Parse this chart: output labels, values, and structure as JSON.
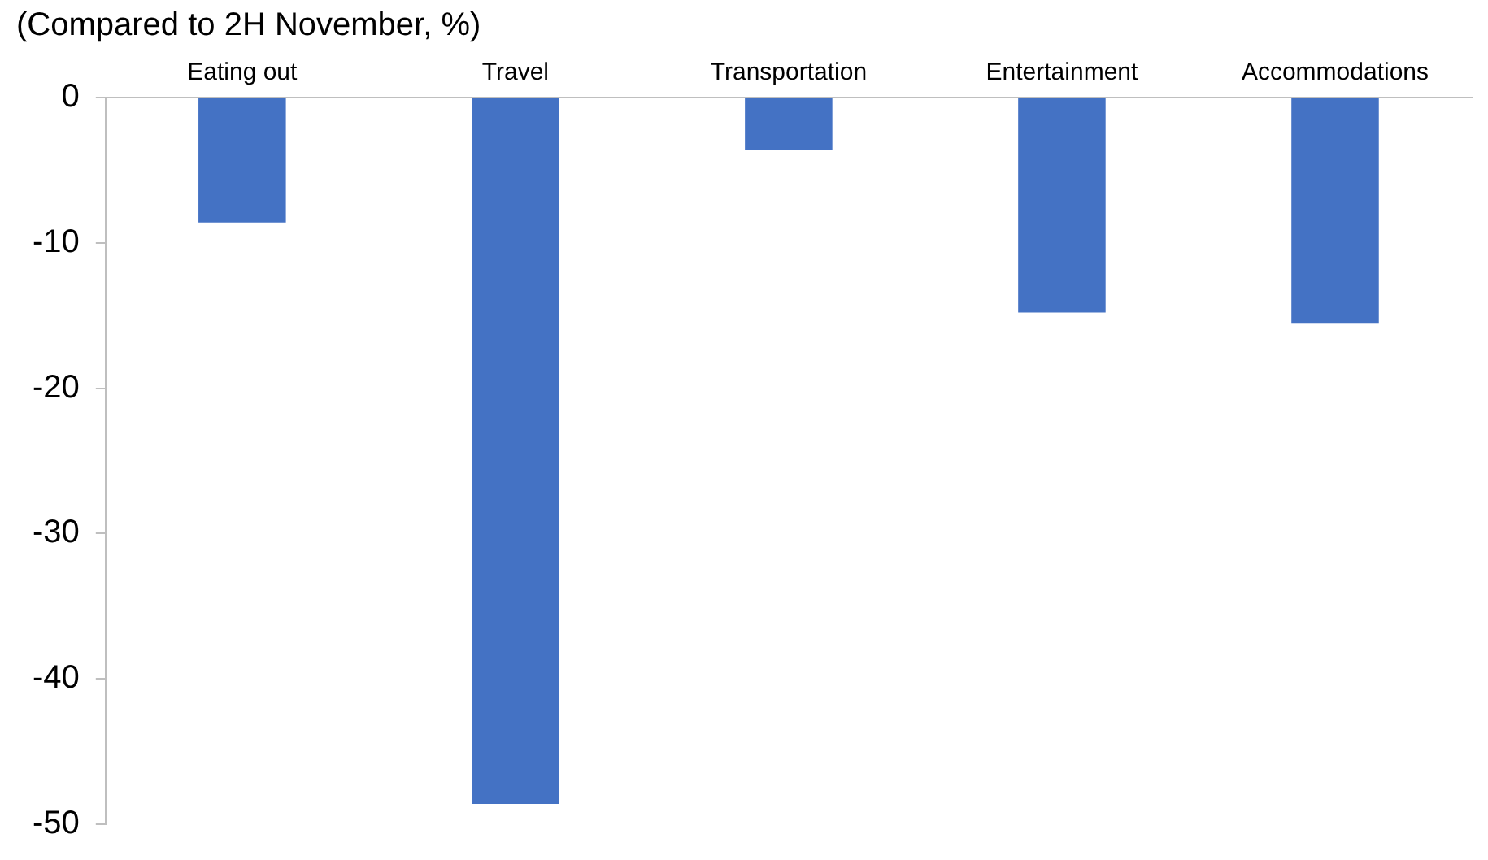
{
  "chart_data": {
    "type": "bar",
    "ylabel": "(Compared to 2H November, %)",
    "categories": [
      "Eating out",
      "Travel",
      "Transportation",
      "Entertainment",
      "Accommodations"
    ],
    "values": [
      -8.6,
      -48.6,
      -3.6,
      -14.8,
      -15.5
    ],
    "color": "#4472c4",
    "ylim": [
      -50,
      0
    ],
    "yticks": [
      -50,
      -40,
      -30,
      -20,
      -10,
      0
    ],
    "grid": false,
    "legend": false
  }
}
